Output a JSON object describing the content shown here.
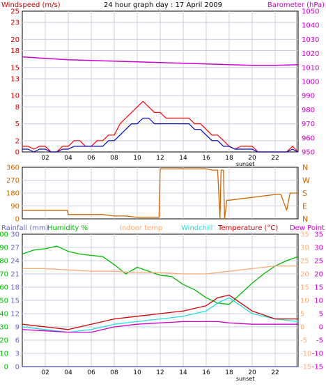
{
  "title": "24 hour graph day : 17 April 2009",
  "colors": {
    "wind_label": "#cc0000",
    "baro_label": "#cc00cc",
    "wind_red": "#ff0000",
    "wind_blue": "#0000cc",
    "baro": "#cc00cc",
    "dir": "#cc6600",
    "rain": "#6666cc",
    "hum": "#00bb00",
    "indoor": "#ffaa77",
    "chill": "#22dddd",
    "temp": "#cc0000",
    "dew": "#cc00cc",
    "grid": "#ccccdd"
  },
  "x_ticks": [
    "02",
    "04",
    "06",
    "08",
    "10",
    "12",
    "14",
    "16",
    "18",
    "20",
    "22"
  ],
  "sunset_label": "sunset",
  "chart_data": [
    {
      "type": "line",
      "name": "wind-baro",
      "title": "24 hour graph day : 17 April 2009",
      "left_label": "Windspeed (m/s)",
      "right_label": "Barometer (hPa)",
      "left_ticks": [
        0,
        2,
        5,
        8,
        10,
        13,
        15,
        18,
        20,
        23,
        25
      ],
      "left_range": [
        0,
        25
      ],
      "right_ticks": [
        950,
        960,
        970,
        980,
        990,
        1000,
        1010,
        1020,
        1030,
        1040,
        1050
      ],
      "right_range": [
        950,
        1050
      ],
      "xlim": [
        0,
        24
      ],
      "series": [
        {
          "name": "Windspeed",
          "axis": "left",
          "color": "#ff0000",
          "x": [
            0,
            0.5,
            1,
            1.5,
            2,
            2.5,
            3,
            3.5,
            4,
            4.5,
            5,
            5.5,
            6,
            6.5,
            7,
            7.5,
            8,
            8.5,
            9,
            9.5,
            10,
            10.5,
            11,
            11.5,
            12,
            12.5,
            13,
            13.5,
            14,
            14.5,
            15,
            15.5,
            16,
            16.5,
            17,
            17.5,
            18,
            18.5,
            19,
            19.5,
            20,
            20.5,
            21,
            21.5,
            22,
            22.5,
            23,
            23.5,
            24
          ],
          "y": [
            1,
            1,
            0.5,
            1,
            1,
            0,
            0,
            1,
            1,
            2,
            2,
            1,
            1,
            2,
            2,
            3,
            3,
            5,
            6,
            7,
            8,
            9,
            8,
            7,
            7,
            6,
            6,
            6,
            6,
            6,
            5,
            5,
            4,
            3,
            3,
            2,
            1,
            0.5,
            1,
            1,
            1,
            0,
            0,
            0,
            0,
            0,
            0,
            1,
            0
          ]
        },
        {
          "name": "Gust",
          "axis": "left",
          "color": "#0000cc",
          "x": [
            0,
            0.5,
            1,
            1.5,
            2,
            2.5,
            3,
            3.5,
            4,
            4.5,
            5,
            5.5,
            6,
            6.5,
            7,
            7.5,
            8,
            8.5,
            9,
            9.5,
            10,
            10.5,
            11,
            11.5,
            12,
            12.5,
            13,
            13.5,
            14,
            14.5,
            15,
            15.5,
            16,
            16.5,
            17,
            17.5,
            18,
            18.5,
            19,
            19.5,
            20,
            20.5,
            21,
            21.5,
            22,
            22.5,
            23,
            23.5,
            24
          ],
          "y": [
            0.5,
            0.5,
            0,
            0.5,
            0.5,
            0,
            0,
            0.5,
            0.5,
            1,
            1,
            1,
            1,
            1,
            1,
            2,
            2,
            3,
            4,
            5,
            5,
            6,
            6,
            5,
            5,
            5,
            5,
            5,
            5,
            5,
            4,
            4,
            3,
            2,
            2,
            1,
            1,
            0.5,
            0.5,
            0.5,
            0.5,
            0,
            0,
            0,
            0,
            0,
            0,
            0.5,
            0
          ]
        },
        {
          "name": "Barometer",
          "axis": "right",
          "color": "#cc00cc",
          "x": [
            0,
            2,
            4,
            6,
            8,
            10,
            12,
            14,
            16,
            18,
            20,
            22,
            24
          ],
          "y": [
            1017.5,
            1016.5,
            1015.5,
            1015,
            1014.5,
            1014,
            1013.5,
            1013,
            1012.5,
            1012,
            1011.5,
            1011.5,
            1012
          ]
        }
      ]
    },
    {
      "type": "line",
      "name": "wind-direction",
      "left_ticks": [
        0,
        90,
        180,
        270,
        360
      ],
      "left_range": [
        0,
        360
      ],
      "right_ticks": [
        "N",
        "E",
        "S",
        "W",
        "N"
      ],
      "xlim": [
        0,
        24
      ],
      "series": [
        {
          "name": "Direction",
          "color": "#cc6600",
          "x": [
            0,
            1,
            2,
            3,
            3.9,
            4,
            5,
            6,
            7,
            8,
            9,
            10,
            11,
            11.9,
            12,
            13,
            14,
            15,
            16,
            16.5,
            17,
            17.2,
            17.3,
            17.5,
            17.6,
            17.8,
            18,
            19,
            20,
            21,
            22,
            22.5,
            23,
            23.3,
            23.5,
            24
          ],
          "y": [
            60,
            60,
            60,
            60,
            60,
            30,
            30,
            30,
            30,
            20,
            20,
            10,
            10,
            10,
            350,
            350,
            350,
            350,
            350,
            340,
            340,
            0,
            340,
            340,
            0,
            130,
            130,
            140,
            150,
            160,
            170,
            170,
            60,
            180,
            180,
            180
          ]
        }
      ]
    },
    {
      "type": "line",
      "name": "temp-humidity",
      "left_labels": [
        "Rainfall (mm)",
        "Humidity %"
      ],
      "center_labels": [
        "Indoor temp",
        "Windchill"
      ],
      "right_labels": [
        "Temperature (°C)",
        "Dew Point"
      ],
      "rain_ticks": [
        0,
        3,
        6,
        9,
        12,
        15,
        18,
        21,
        24,
        27,
        30
      ],
      "rain_range": [
        0,
        30
      ],
      "hum_ticks": [
        0,
        10,
        20,
        30,
        40,
        50,
        60,
        70,
        80,
        90,
        100
      ],
      "hum_range": [
        0,
        100
      ],
      "temp_ticks": [
        -15,
        -10,
        -5,
        0,
        5,
        10,
        15,
        20,
        25,
        30,
        35
      ],
      "temp_range": [
        -15,
        35
      ],
      "xlim": [
        0,
        24
      ],
      "series": [
        {
          "name": "Humidity",
          "axis": "hum",
          "color": "#00bb00",
          "x": [
            0,
            1,
            2,
            3,
            4,
            5,
            6,
            7,
            8,
            9,
            10,
            11,
            12,
            13,
            14,
            15,
            16,
            17,
            18,
            19,
            20,
            21,
            22,
            23,
            24
          ],
          "y": [
            85,
            88,
            89,
            91,
            87,
            85,
            84,
            83,
            77,
            70,
            75,
            72,
            69,
            68,
            62,
            58,
            52,
            48,
            47,
            55,
            63,
            70,
            76,
            80,
            83
          ]
        },
        {
          "name": "Indoor temp",
          "axis": "temp",
          "color": "#ffaa77",
          "x": [
            0,
            2,
            4,
            6,
            8,
            10,
            12,
            14,
            16,
            18,
            20,
            22,
            24
          ],
          "y": [
            22,
            22,
            21.5,
            21,
            21,
            20.5,
            20.5,
            20,
            20,
            21,
            22,
            23,
            23
          ]
        },
        {
          "name": "Windchill",
          "axis": "temp",
          "color": "#22dddd",
          "x": [
            0,
            2,
            4,
            6,
            8,
            10,
            12,
            14,
            16,
            17,
            18,
            19,
            20,
            22,
            24
          ],
          "y": [
            0,
            -1,
            -2,
            -1,
            1,
            2,
            3,
            4,
            6,
            9,
            11,
            8,
            5,
            3,
            2
          ]
        },
        {
          "name": "Temperature",
          "axis": "temp",
          "color": "#cc0000",
          "x": [
            0,
            2,
            4,
            6,
            8,
            10,
            12,
            14,
            16,
            17,
            18,
            19,
            20,
            22,
            24
          ],
          "y": [
            1,
            0,
            -1,
            1,
            3,
            4,
            5,
            6,
            8,
            11,
            12,
            9,
            6,
            3,
            3
          ]
        },
        {
          "name": "Dew Point",
          "axis": "temp",
          "color": "#cc00cc",
          "x": [
            0,
            2,
            4,
            6,
            8,
            10,
            12,
            14,
            16,
            17,
            18,
            20,
            22,
            24
          ],
          "y": [
            -1,
            -1.5,
            -2,
            -2,
            0,
            1,
            1.5,
            2,
            2,
            2,
            1.5,
            1,
            1,
            1
          ]
        },
        {
          "name": "Rainfall",
          "axis": "rain",
          "color": "#6666cc",
          "x": [
            0,
            24
          ],
          "y": [
            0,
            0
          ]
        }
      ]
    }
  ]
}
